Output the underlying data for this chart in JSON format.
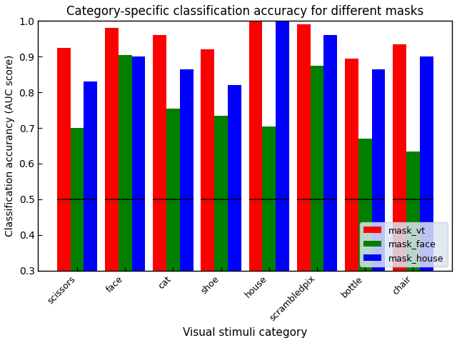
{
  "categories": [
    "scissors",
    "face",
    "cat",
    "shoe",
    "house",
    "scrambledpix",
    "bottle",
    "chair"
  ],
  "mask_vt": [
    0.925,
    0.98,
    0.96,
    0.92,
    1.0,
    0.99,
    0.895,
    0.935
  ],
  "mask_face": [
    0.7,
    0.905,
    0.755,
    0.735,
    0.705,
    0.875,
    0.67,
    0.635
  ],
  "mask_house": [
    0.83,
    0.9,
    0.865,
    0.82,
    1.0,
    0.96,
    0.865,
    0.9
  ],
  "colors": [
    "red",
    "green",
    "blue"
  ],
  "legend_labels": [
    "mask_vt",
    "mask_face",
    "mask_house"
  ],
  "title": "Category-specific classification accuracy for different masks",
  "xlabel": "Visual stimuli category",
  "ylabel": "Classification accurancy (AUC score)",
  "ylim": [
    0.3,
    1.0
  ],
  "hline_y": 0.5,
  "bar_width": 0.28,
  "background_color": "#ffffff"
}
